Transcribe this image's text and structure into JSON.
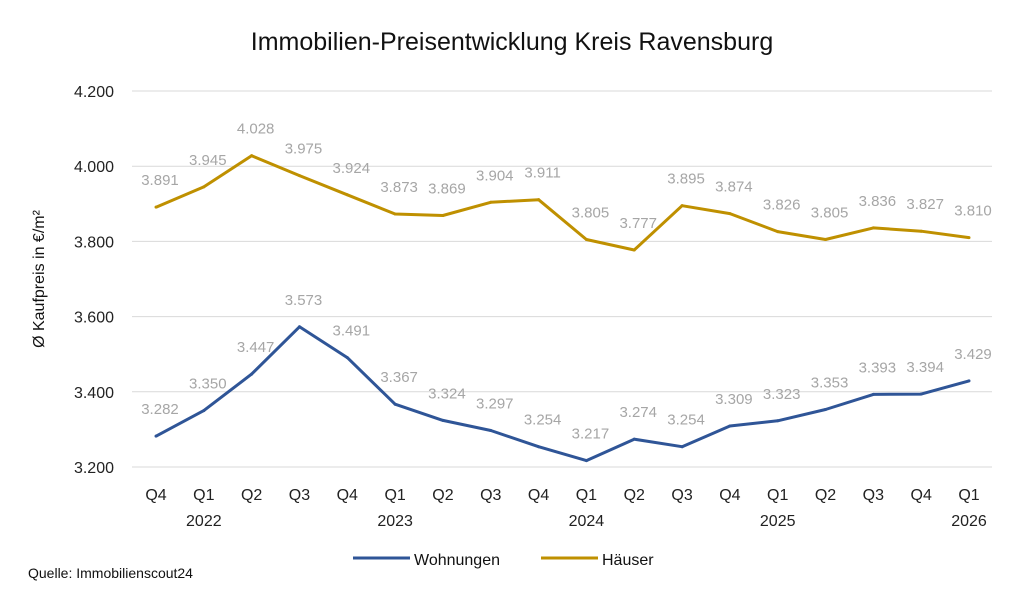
{
  "chart_data": {
    "type": "line",
    "title": "Immobilien-Preisentwicklung Kreis Ravensburg",
    "xlabel": "",
    "ylabel": "Ø Kaufpreis in €/m²",
    "ylim": [
      3200,
      4200
    ],
    "yticks": [
      3200,
      3400,
      3600,
      3800,
      4000,
      4200
    ],
    "ytick_labels": [
      "3.200",
      "3.400",
      "3.600",
      "3.800",
      "4.000",
      "4.200"
    ],
    "grid": true,
    "legend_position": "bottom-center",
    "categories": [
      "Q4",
      "Q1",
      "Q2",
      "Q3",
      "Q4",
      "Q1",
      "Q2",
      "Q3",
      "Q4",
      "Q1",
      "Q2",
      "Q3",
      "Q4",
      "Q1",
      "Q2",
      "Q3",
      "Q4",
      "Q1"
    ],
    "year_labels": [
      {
        "index": 1,
        "label": "2022"
      },
      {
        "index": 5,
        "label": "2023"
      },
      {
        "index": 9,
        "label": "2024"
      },
      {
        "index": 13,
        "label": "2025"
      },
      {
        "index": 17,
        "label": "2026"
      }
    ],
    "series": [
      {
        "name": "Wohnungen",
        "color": "#2f5597",
        "values": [
          3282,
          3350,
          3447,
          3573,
          3491,
          3367,
          3324,
          3297,
          3254,
          3217,
          3274,
          3254,
          3309,
          3323,
          3353,
          3393,
          3394,
          3429
        ],
        "labels": [
          "3.282",
          "3.350",
          "3.447",
          "3.573",
          "3.491",
          "3.367",
          "3.324",
          "3.297",
          "3.254",
          "3.217",
          "3.274",
          "3.254",
          "3.309",
          "3.323",
          "3.353",
          "3.393",
          "3.394",
          "3.429"
        ]
      },
      {
        "name": "Häuser",
        "color": "#bf9000",
        "values": [
          3891,
          3945,
          4028,
          3975,
          3924,
          3873,
          3869,
          3904,
          3911,
          3805,
          3777,
          3895,
          3874,
          3826,
          3805,
          3836,
          3827,
          3810
        ],
        "labels": [
          "3.891",
          "3.945",
          "4.028",
          "3.975",
          "3.924",
          "3.873",
          "3.869",
          "3.904",
          "3.911",
          "3.805",
          "3.777",
          "3.895",
          "3.874",
          "3.826",
          "3.805",
          "3.836",
          "3.827",
          "3.810"
        ]
      }
    ],
    "source": "Quelle: Immobilienscout24"
  }
}
